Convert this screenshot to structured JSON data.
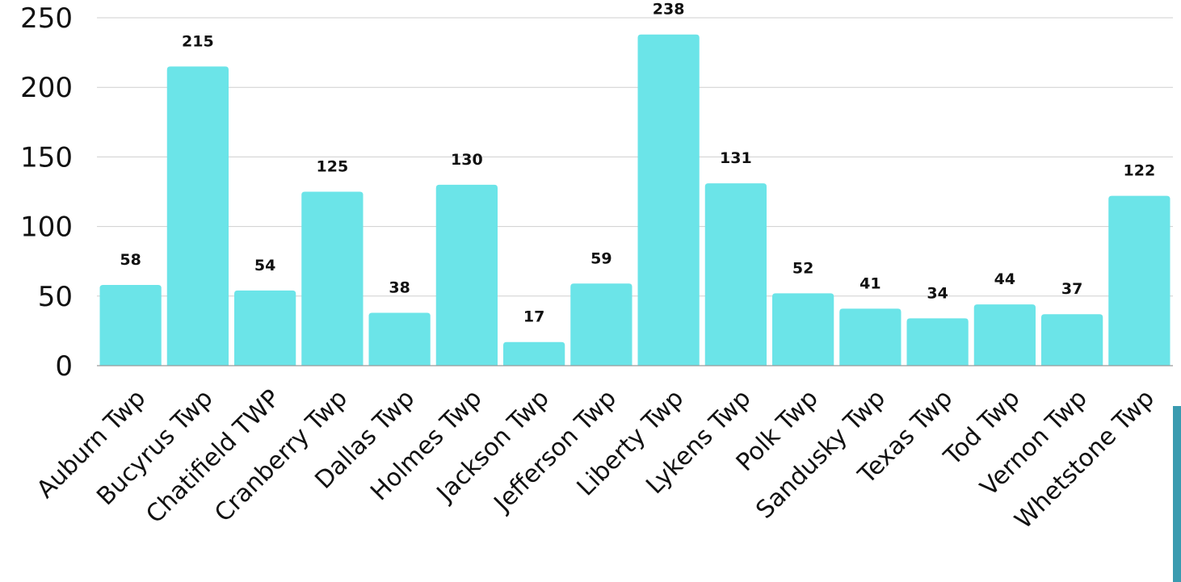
{
  "chart_data": {
    "type": "bar",
    "categories": [
      "Auburn Twp",
      "Bucyrus Twp",
      "Chatifield TWP",
      "Cranberry Twp",
      "Dallas Twp",
      "Holmes Twp",
      "Jackson Twp",
      "Jefferson Twp",
      "Liberty Twp",
      "Lykens Twp",
      "Polk Twp",
      "Sandusky Twp",
      "Texas Twp",
      "Tod Twp",
      "Vernon Twp",
      "Whetstone Twp"
    ],
    "values": [
      58,
      215,
      54,
      125,
      38,
      130,
      17,
      59,
      238,
      131,
      52,
      41,
      34,
      44,
      37,
      122
    ],
    "data_labels": [
      "58",
      "215",
      "54",
      "125",
      "38",
      "130",
      "17",
      "59",
      "238",
      "131",
      "52",
      "41",
      "34",
      "44",
      "37",
      "122"
    ],
    "yticks": [
      0,
      50,
      100,
      150,
      200,
      250
    ],
    "ytick_labels": [
      "0",
      "50",
      "100",
      "150",
      "200",
      "250"
    ],
    "ylim": [
      0,
      250
    ],
    "grid": true,
    "legend": "none",
    "title": "",
    "xlabel": "",
    "ylabel": ""
  },
  "colors": {
    "bar": "#6be4e8",
    "accent_strip": "#3a9bb0"
  }
}
